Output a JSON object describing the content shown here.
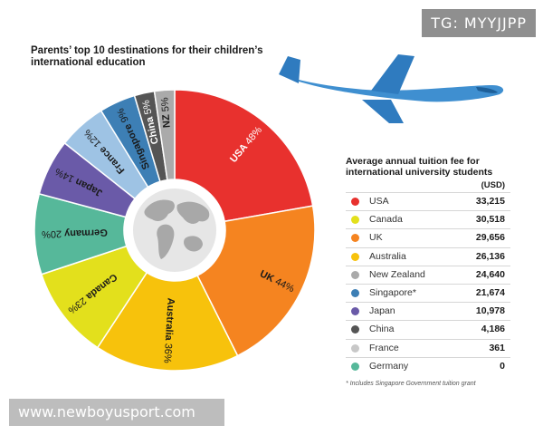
{
  "watermarks": {
    "top": "TG: MYYJJPP",
    "bottom": "www.newboyusport.com"
  },
  "chart_data": [
    {
      "type": "pie",
      "title": "Parents’ top 10 destinations for their children’s international education",
      "slices": [
        {
          "label": "USA",
          "value": 48,
          "color": "#e8312e"
        },
        {
          "label": "UK",
          "value": 44,
          "color": "#f58420"
        },
        {
          "label": "Australia",
          "value": 36,
          "color": "#f7c20c"
        },
        {
          "label": "Canada",
          "value": 23,
          "color": "#e3e01c"
        },
        {
          "label": "Germany",
          "value": 20,
          "color": "#56b89a"
        },
        {
          "label": "Japan",
          "value": 14,
          "color": "#6a5aa8"
        },
        {
          "label": "France",
          "value": 12,
          "color": "#9ec3e4"
        },
        {
          "label": "Singapore",
          "value": 9,
          "color": "#3d7fb5"
        },
        {
          "label": "China",
          "value": 5,
          "color": "#555555"
        },
        {
          "label": "NZ",
          "value": 5,
          "color": "#aaaaaa"
        }
      ]
    },
    {
      "type": "table",
      "title": "Average annual tuition fee for international university students",
      "unit": "(USD)",
      "rows": [
        {
          "name": "USA",
          "value": "33,215",
          "color": "#e8312e"
        },
        {
          "name": "Canada",
          "value": "30,518",
          "color": "#e3e01c"
        },
        {
          "name": "UK",
          "value": "29,656",
          "color": "#f58420"
        },
        {
          "name": "Australia",
          "value": "26,136",
          "color": "#f7c20c"
        },
        {
          "name": "New Zealand",
          "value": "24,640",
          "color": "#aaaaaa"
        },
        {
          "name": "Singapore*",
          "value": "21,674",
          "color": "#3d7fb5"
        },
        {
          "name": "Japan",
          "value": "10,978",
          "color": "#6a5aa8"
        },
        {
          "name": "China",
          "value": "4,186",
          "color": "#555555"
        },
        {
          "name": "France",
          "value": "361",
          "color": "#c8c8c8"
        },
        {
          "name": "Germany",
          "value": "0",
          "color": "#56b89a"
        }
      ],
      "footnote": "* Includes Singapore Government tuition grant"
    }
  ]
}
